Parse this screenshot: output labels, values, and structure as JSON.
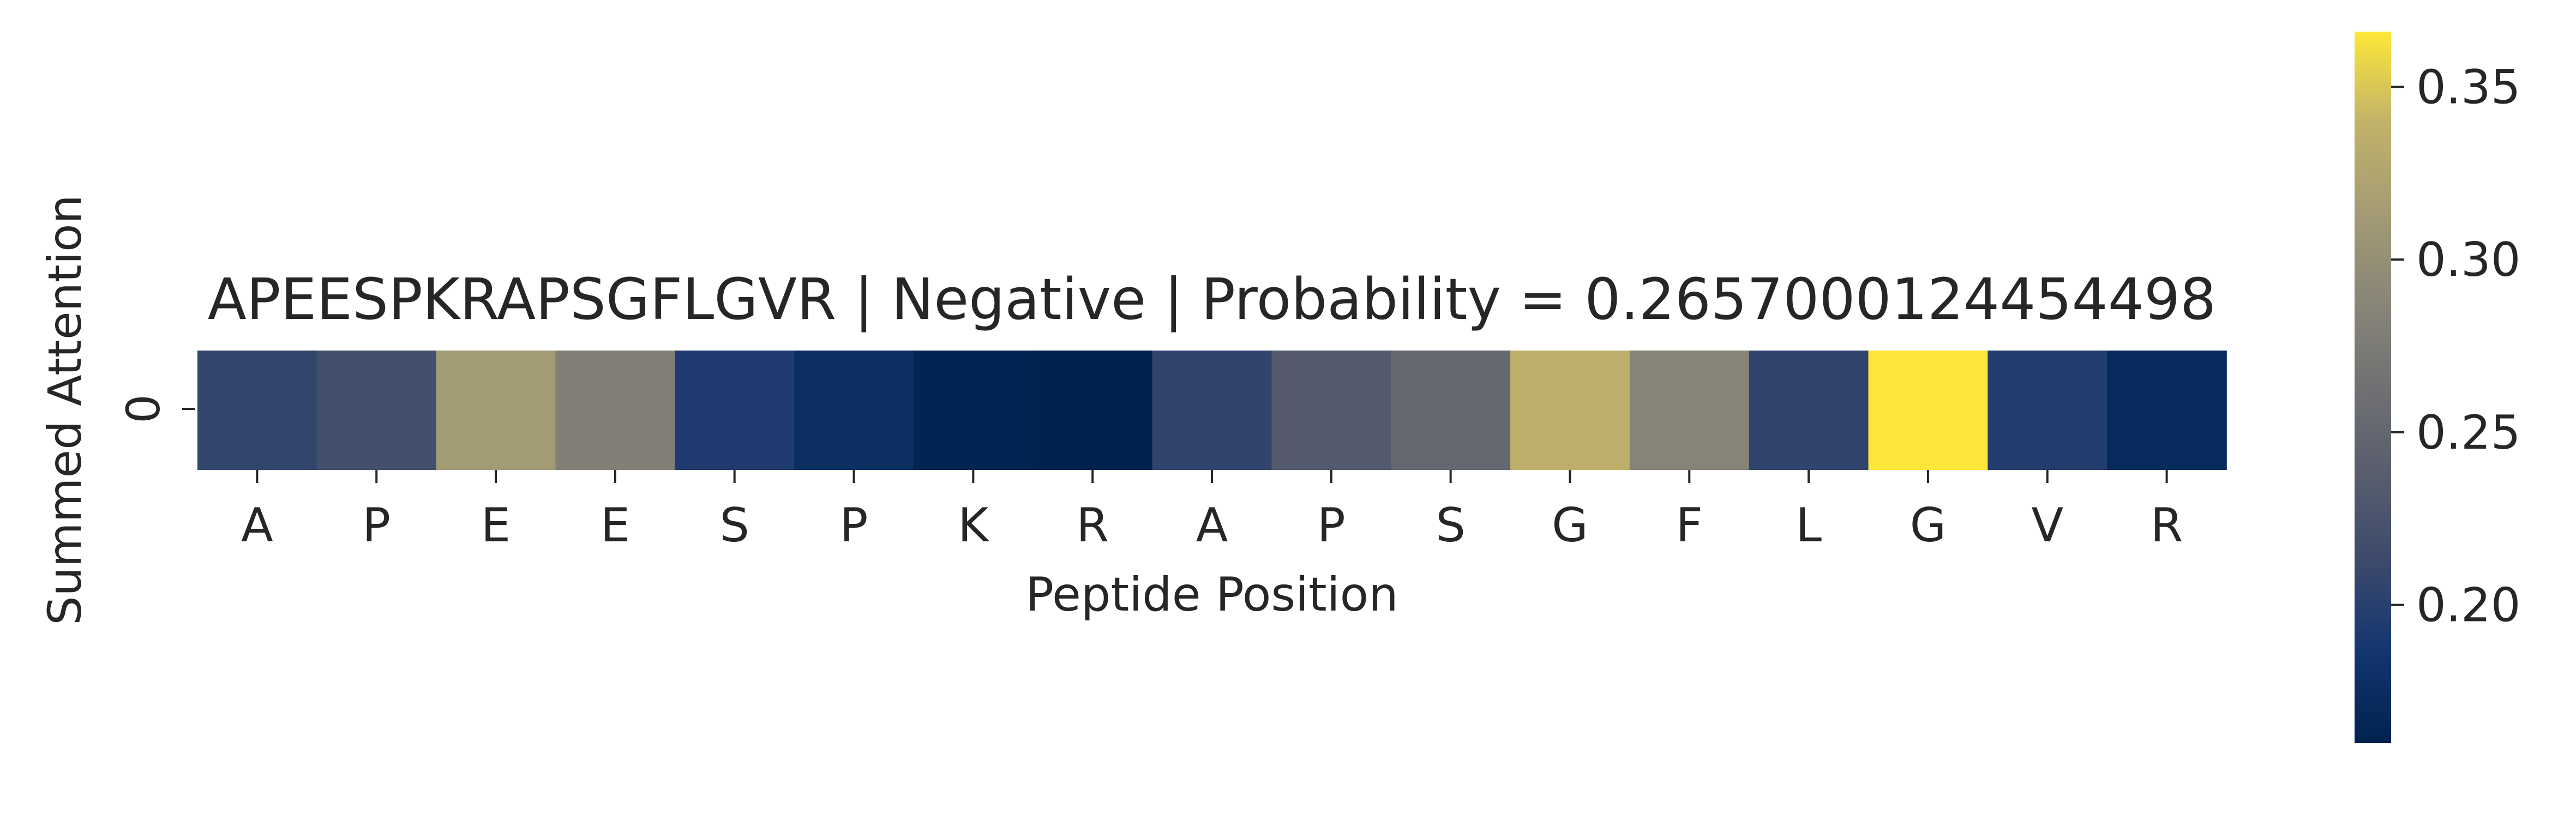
{
  "chart_data": {
    "type": "heatmap",
    "title": "APEESPKRAPSGFLGVR | Negative | Probability = 0.2657000124454498",
    "xlabel": "Peptide Position",
    "ylabel": "Summed Attention",
    "x_ticklabels": [
      "A",
      "P",
      "E",
      "E",
      "S",
      "P",
      "K",
      "R",
      "A",
      "P",
      "S",
      "G",
      "F",
      "L",
      "G",
      "V",
      "R"
    ],
    "y_ticklabels": [
      "0"
    ],
    "values": [
      [
        0.206,
        0.219,
        0.313,
        0.28,
        0.194,
        0.176,
        0.163,
        0.16,
        0.205,
        0.234,
        0.251,
        0.335,
        0.285,
        0.205,
        0.365,
        0.196,
        0.172
      ]
    ],
    "colormap": "cividis",
    "colorbar": {
      "min": 0.16,
      "max": 0.366,
      "ticks": [
        0.2,
        0.25,
        0.3,
        0.35
      ],
      "tick_labels": [
        "0.20",
        "0.25",
        "0.30",
        "0.35"
      ]
    },
    "grid": false,
    "legend": "none"
  }
}
